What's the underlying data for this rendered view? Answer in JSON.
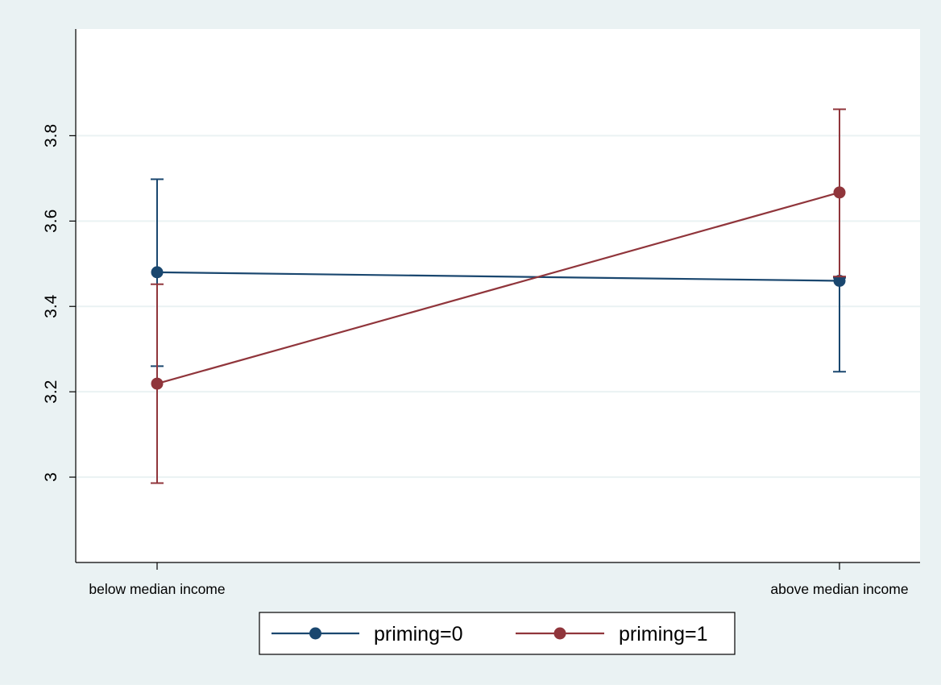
{
  "colors": {
    "outer_bg": "#eaf2f3",
    "plot_bg": "#ffffff",
    "grid": "#eaf2f3",
    "axis": "#000000",
    "series_0": "#1a476f",
    "series_1": "#90353b"
  },
  "chart_data": {
    "type": "line",
    "title": "",
    "xlabel": "",
    "ylabel": "",
    "categories": [
      "below median income",
      "above median income"
    ],
    "ylim": [
      2.8,
      4.05
    ],
    "yticks": [
      3,
      3.2,
      3.4,
      3.6,
      3.8
    ],
    "ytick_labels": [
      "3",
      "3.2",
      "3.4",
      "3.6",
      "3.8"
    ],
    "grid": true,
    "legend_position": "bottom",
    "series": [
      {
        "name": "priming=0",
        "color": "#1a476f",
        "values": [
          3.48,
          3.46
        ],
        "ci_low": [
          3.26,
          3.247
        ],
        "ci_high": [
          3.698,
          3.467
        ]
      },
      {
        "name": "priming=1",
        "color": "#90353b",
        "values": [
          3.219,
          3.667
        ],
        "ci_low": [
          2.986,
          3.47
        ],
        "ci_high": [
          3.452,
          3.862
        ]
      }
    ]
  }
}
